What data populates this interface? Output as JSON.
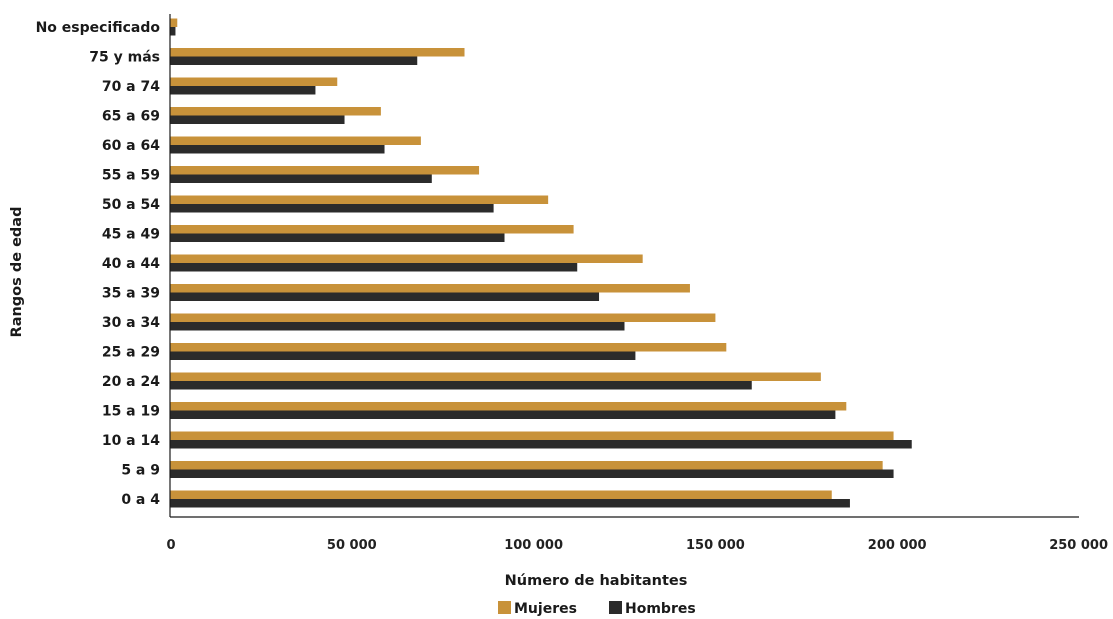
{
  "chart_data": {
    "type": "bar",
    "orientation": "horizontal",
    "categories": [
      "No especificado",
      "75 y más",
      "70 a 74",
      "65 a 69",
      "60 a 64",
      "55 a 59",
      "50 a 54",
      "45 a 49",
      "40 a 44",
      "35 a 39",
      "30 a 34",
      "25 a 29",
      "20 a 24",
      "15 a 19",
      "10 a 14",
      "5 a 9",
      "0 a 4"
    ],
    "series": [
      {
        "name": "Mujeres",
        "color": "#c8923a",
        "values": [
          2000,
          81000,
          46000,
          58000,
          69000,
          85000,
          104000,
          111000,
          130000,
          143000,
          150000,
          153000,
          179000,
          186000,
          199000,
          196000,
          182000
        ]
      },
      {
        "name": "Hombres",
        "color": "#2b2b2b",
        "values": [
          1500,
          68000,
          40000,
          48000,
          59000,
          72000,
          89000,
          92000,
          112000,
          118000,
          125000,
          128000,
          160000,
          183000,
          204000,
          199000,
          187000
        ]
      }
    ],
    "xlabel": "Número de habitantes",
    "ylabel": "Rangos de edad",
    "xlim": [
      0,
      250000
    ],
    "xticks": [
      0,
      50000,
      100000,
      150000,
      200000,
      250000
    ],
    "xtick_labels": [
      "0",
      "50 000",
      "100 000",
      "150 000",
      "200 000",
      "250 000"
    ],
    "grid": false,
    "legend_position": "bottom-center"
  }
}
